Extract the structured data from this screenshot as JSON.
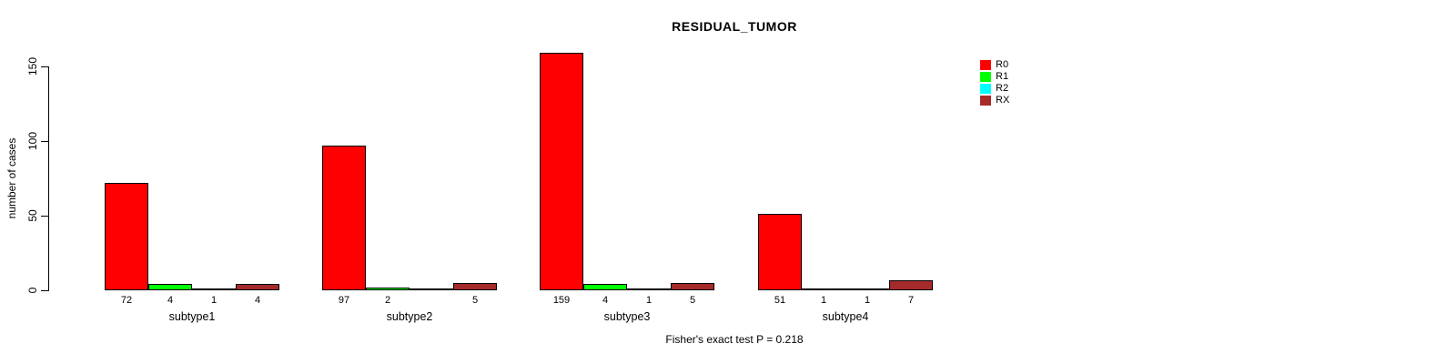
{
  "title": "RESIDUAL_TUMOR",
  "footer": "Fisher's exact test P = 0.218",
  "chart_data": {
    "type": "bar",
    "title": "RESIDUAL_TUMOR",
    "xlabel": "",
    "ylabel": "number of cases",
    "ylim": [
      0,
      150
    ],
    "yticks": [
      0,
      50,
      100,
      150
    ],
    "grid": false,
    "legend_position": "top-right",
    "categories": [
      "subtype1",
      "subtype2",
      "subtype3",
      "subtype4"
    ],
    "series": [
      {
        "name": "R0",
        "color": "#ff0000",
        "values": [
          72,
          97,
          159,
          51
        ]
      },
      {
        "name": "R1",
        "color": "#00ff00",
        "values": [
          4,
          2,
          4,
          1
        ]
      },
      {
        "name": "R2",
        "color": "#00ffff",
        "values": [
          1,
          0,
          1,
          1
        ]
      },
      {
        "name": "RX",
        "color": "#a52a2a",
        "values": [
          4,
          5,
          5,
          7
        ]
      }
    ],
    "bar_value_labels": [
      [
        "72",
        "4",
        "1",
        "4"
      ],
      [
        "97",
        "2",
        "",
        "5"
      ],
      [
        "159",
        "4",
        "1",
        "5"
      ],
      [
        "51",
        "1",
        "1",
        "7"
      ]
    ],
    "annotation": "Fisher's exact test P = 0.218"
  }
}
